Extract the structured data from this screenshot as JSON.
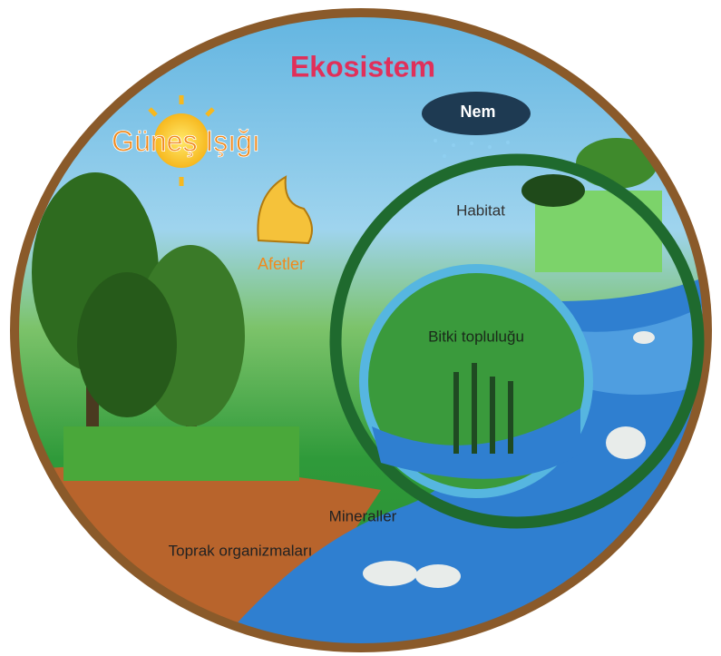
{
  "title": "Ekosistem",
  "labels": {
    "sunlight": "Güneş Işığı",
    "humidity": "Nem",
    "habitat": "Habitat",
    "disasters": "Afetler",
    "plant_community": "Bitki topluluğu",
    "minerals": "Mineraller",
    "soil_organisms": "Toprak organizmaları"
  }
}
